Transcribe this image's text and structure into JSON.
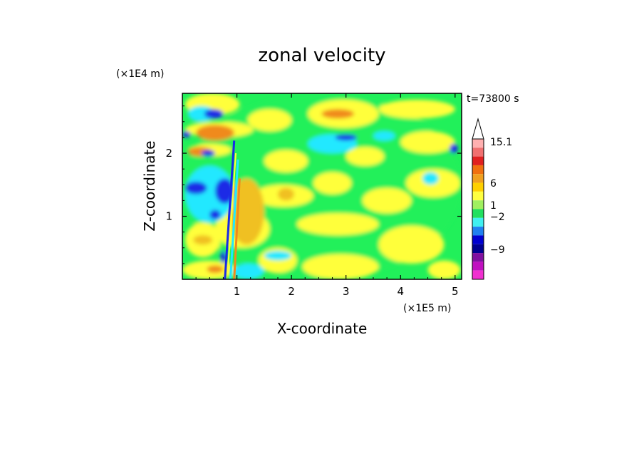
{
  "chart_data": {
    "type": "heatmap",
    "title": "zonal velocity",
    "xlabel": "X-coordinate",
    "ylabel": "Z-coordinate",
    "x_scale_label": "(×1E5 m)",
    "y_scale_label": "(×1E4 m)",
    "time_label": "t=73800 s",
    "xlim": [
      0,
      5.12
    ],
    "ylim": [
      0,
      2.95
    ],
    "x_ticks": [
      1,
      2,
      3,
      4,
      5
    ],
    "y_ticks": [
      1,
      2
    ],
    "x_tick_labels": [
      "1",
      "2",
      "3",
      "4",
      "5"
    ],
    "y_tick_labels": [
      "1",
      "2"
    ],
    "colorbar": {
      "tick_labels": [
        "15.1",
        "6",
        "1",
        "-2",
        "-9"
      ],
      "tick_levels": [
        15.1,
        6,
        1,
        -2,
        -9
      ],
      "colors_top_to_bottom": [
        "#ffb0b0",
        "#f07070",
        "#e02020",
        "#f07010",
        "#f0a020",
        "#ffd000",
        "#ffff40",
        "#a0f060",
        "#20e060",
        "#40f0f0",
        "#2080f0",
        "#0000d0",
        "#000090",
        "#8010a0",
        "#c010c0",
        "#f030d0"
      ],
      "extend_max": true
    },
    "field_colors": {
      "green": "#21f05a",
      "yellow": "#ffff3a",
      "light_orange": "#f0c020",
      "orange": "#f08a1c",
      "cyan": "#22e8ff",
      "blue": "#1a2ae6"
    },
    "patches": [
      {
        "level": "green",
        "x": [
          0,
          5.12
        ],
        "y": [
          0,
          2.95
        ]
      },
      {
        "level": "yellow",
        "x": [
          0.05,
          1.05
        ],
        "y": [
          2.6,
          2.95
        ]
      },
      {
        "level": "yellow",
        "x": [
          0.05,
          1.3
        ],
        "y": [
          2.25,
          2.5
        ]
      },
      {
        "level": "yellow",
        "x": [
          0.1,
          0.9
        ],
        "y": [
          1.95,
          2.15
        ]
      },
      {
        "level": "yellow",
        "x": [
          1.2,
          2.0
        ],
        "y": [
          2.35,
          2.7
        ]
      },
      {
        "level": "yellow",
        "x": [
          2.3,
          3.6
        ],
        "y": [
          2.4,
          2.85
        ]
      },
      {
        "level": "yellow",
        "x": [
          3.0,
          3.7
        ],
        "y": [
          1.8,
          2.1
        ]
      },
      {
        "level": "yellow",
        "x": [
          3.6,
          5.0
        ],
        "y": [
          2.55,
          2.85
        ]
      },
      {
        "level": "yellow",
        "x": [
          4.0,
          5.0
        ],
        "y": [
          2.0,
          2.35
        ]
      },
      {
        "level": "yellow",
        "x": [
          1.5,
          2.3
        ],
        "y": [
          1.7,
          2.05
        ]
      },
      {
        "level": "yellow",
        "x": [
          1.3,
          2.4
        ],
        "y": [
          1.15,
          1.5
        ]
      },
      {
        "level": "yellow",
        "x": [
          0.6,
          1.6
        ],
        "y": [
          0.5,
          1.1
        ]
      },
      {
        "level": "yellow",
        "x": [
          0.05,
          0.7
        ],
        "y": [
          0.35,
          0.9
        ]
      },
      {
        "level": "yellow",
        "x": [
          0.0,
          1.0
        ],
        "y": [
          0.0,
          0.3
        ]
      },
      {
        "level": "yellow",
        "x": [
          1.4,
          2.1
        ],
        "y": [
          0.1,
          0.5
        ]
      },
      {
        "level": "yellow",
        "x": [
          2.1,
          3.6
        ],
        "y": [
          0.7,
          1.05
        ]
      },
      {
        "level": "yellow",
        "x": [
          2.2,
          3.6
        ],
        "y": [
          0.0,
          0.4
        ]
      },
      {
        "level": "yellow",
        "x": [
          3.3,
          4.2
        ],
        "y": [
          1.05,
          1.45
        ]
      },
      {
        "level": "yellow",
        "x": [
          3.6,
          4.8
        ],
        "y": [
          0.25,
          0.85
        ]
      },
      {
        "level": "yellow",
        "x": [
          4.1,
          5.1
        ],
        "y": [
          1.3,
          1.75
        ]
      },
      {
        "level": "yellow",
        "x": [
          4.5,
          5.1
        ],
        "y": [
          0.0,
          0.3
        ]
      },
      {
        "level": "yellow",
        "x": [
          2.4,
          3.1
        ],
        "y": [
          1.35,
          1.7
        ]
      },
      {
        "level": "orange",
        "x": [
          0.25,
          0.95
        ],
        "y": [
          2.2,
          2.45
        ]
      },
      {
        "level": "orange",
        "x": [
          0.1,
          0.55
        ],
        "y": [
          1.95,
          2.1
        ]
      },
      {
        "level": "orange",
        "x": [
          2.55,
          3.15
        ],
        "y": [
          2.55,
          2.7
        ]
      },
      {
        "level": "orange",
        "x": [
          0.95,
          1.35
        ],
        "y": [
          0.75,
          1.4
        ]
      },
      {
        "level": "orange",
        "x": [
          0.45,
          0.75
        ],
        "y": [
          0.1,
          0.22
        ]
      },
      {
        "level": "light_orange",
        "x": [
          0.85,
          1.5
        ],
        "y": [
          0.55,
          1.6
        ]
      },
      {
        "level": "light_orange",
        "x": [
          1.75,
          2.05
        ],
        "y": [
          1.25,
          1.45
        ]
      },
      {
        "level": "light_orange",
        "x": [
          0.2,
          0.55
        ],
        "y": [
          0.55,
          0.7
        ]
      },
      {
        "level": "cyan",
        "x": [
          0.05,
          0.95
        ],
        "y": [
          0.9,
          1.8
        ]
      },
      {
        "level": "cyan",
        "x": [
          0.1,
          0.6
        ],
        "y": [
          2.5,
          2.75
        ]
      },
      {
        "level": "cyan",
        "x": [
          2.3,
          3.2
        ],
        "y": [
          2.0,
          2.3
        ]
      },
      {
        "level": "cyan",
        "x": [
          0.9,
          1.5
        ],
        "y": [
          0.0,
          0.25
        ]
      },
      {
        "level": "cyan",
        "x": [
          4.4,
          4.7
        ],
        "y": [
          1.5,
          1.7
        ]
      },
      {
        "level": "cyan",
        "x": [
          1.5,
          2.0
        ],
        "y": [
          0.3,
          0.45
        ]
      },
      {
        "level": "cyan",
        "x": [
          3.5,
          3.9
        ],
        "y": [
          2.2,
          2.35
        ]
      },
      {
        "level": "blue",
        "x": [
          0.6,
          0.95
        ],
        "y": [
          1.2,
          1.6
        ]
      },
      {
        "level": "blue",
        "x": [
          0.05,
          0.45
        ],
        "y": [
          1.35,
          1.55
        ]
      },
      {
        "level": "blue",
        "x": [
          0.4,
          0.75
        ],
        "y": [
          2.55,
          2.7
        ]
      },
      {
        "level": "blue",
        "x": [
          0.35,
          0.6
        ],
        "y": [
          1.95,
          2.05
        ]
      },
      {
        "level": "blue",
        "x": [
          2.8,
          3.2
        ],
        "y": [
          2.2,
          2.3
        ]
      },
      {
        "level": "blue",
        "x": [
          4.9,
          5.05
        ],
        "y": [
          2.0,
          2.15
        ]
      },
      {
        "level": "blue",
        "x": [
          0.5,
          0.7
        ],
        "y": [
          0.95,
          1.1
        ]
      },
      {
        "level": "blue",
        "x": [
          0.0,
          0.15
        ],
        "y": [
          2.25,
          2.35
        ]
      },
      {
        "level": "blue",
        "x": [
          0.7,
          0.8
        ],
        "y": [
          0.25,
          0.45
        ]
      }
    ]
  }
}
